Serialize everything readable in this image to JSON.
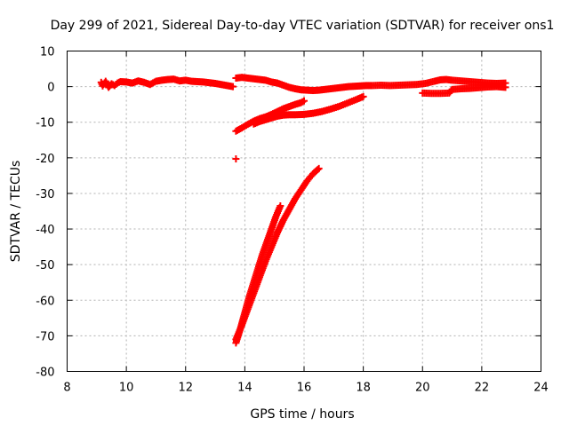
{
  "chart_data": {
    "type": "scatter",
    "title": "Day 299 of 2021, Sidereal Day-to-day VTEC variation (SDTVAR) for receiver ons1",
    "xlabel": "GPS time / hours",
    "ylabel": "SDTVAR / TECUs",
    "xlim": [
      8,
      24
    ],
    "ylim": [
      -80,
      10
    ],
    "xticks": [
      8,
      10,
      12,
      14,
      16,
      18,
      20,
      22,
      24
    ],
    "yticks": [
      10,
      0,
      -10,
      -20,
      -30,
      -40,
      -50,
      -60,
      -70,
      -80
    ],
    "grid": true,
    "marker": "plus",
    "color": "#ff0000",
    "series": [
      {
        "name": "main-track-left",
        "points": [
          [
            9.15,
            1.2
          ],
          [
            9.2,
            0.2
          ],
          [
            9.3,
            1.5
          ],
          [
            9.4,
            -0.2
          ],
          [
            9.5,
            0.8
          ],
          [
            9.6,
            0.3
          ],
          [
            9.7,
            1.0
          ],
          [
            9.8,
            1.4
          ],
          [
            10.0,
            1.3
          ],
          [
            10.2,
            1.0
          ],
          [
            10.4,
            1.6
          ],
          [
            10.6,
            1.2
          ],
          [
            10.8,
            0.6
          ],
          [
            11.0,
            1.5
          ],
          [
            11.2,
            1.8
          ],
          [
            11.4,
            2.0
          ],
          [
            11.6,
            2.1
          ],
          [
            11.8,
            1.6
          ],
          [
            12.0,
            1.8
          ],
          [
            12.2,
            1.5
          ],
          [
            12.4,
            1.4
          ],
          [
            12.6,
            1.3
          ],
          [
            12.8,
            1.1
          ],
          [
            13.0,
            0.9
          ],
          [
            13.2,
            0.6
          ],
          [
            13.4,
            0.3
          ],
          [
            13.6,
            0.0
          ]
        ]
      },
      {
        "name": "main-track-right",
        "points": [
          [
            13.7,
            2.4
          ],
          [
            13.9,
            2.6
          ],
          [
            14.1,
            2.4
          ],
          [
            14.3,
            2.2
          ],
          [
            14.5,
            2.0
          ],
          [
            14.7,
            1.8
          ],
          [
            14.9,
            1.3
          ],
          [
            15.1,
            1.0
          ],
          [
            15.3,
            0.4
          ],
          [
            15.5,
            -0.2
          ],
          [
            15.7,
            -0.6
          ],
          [
            15.9,
            -0.9
          ],
          [
            16.1,
            -1.0
          ],
          [
            16.3,
            -1.1
          ],
          [
            16.5,
            -1.0
          ],
          [
            16.7,
            -0.8
          ],
          [
            16.9,
            -0.6
          ],
          [
            17.1,
            -0.4
          ],
          [
            17.3,
            -0.2
          ],
          [
            17.5,
            0.0
          ],
          [
            17.7,
            0.1
          ],
          [
            17.9,
            0.2
          ],
          [
            18.1,
            0.3
          ],
          [
            18.3,
            0.3
          ],
          [
            18.6,
            0.4
          ],
          [
            18.9,
            0.3
          ],
          [
            19.2,
            0.4
          ],
          [
            19.5,
            0.5
          ],
          [
            19.8,
            0.6
          ],
          [
            20.1,
            0.9
          ],
          [
            20.4,
            1.5
          ],
          [
            20.6,
            1.9
          ],
          [
            20.8,
            2.0
          ],
          [
            21.0,
            1.8
          ],
          [
            21.3,
            1.6
          ],
          [
            21.6,
            1.4
          ],
          [
            21.9,
            1.2
          ],
          [
            22.2,
            1.0
          ],
          [
            22.5,
            0.9
          ],
          [
            22.8,
            1.0
          ]
        ]
      },
      {
        "name": "main-track-lower-branch",
        "points": [
          [
            20.0,
            -1.8
          ],
          [
            20.3,
            -1.9
          ],
          [
            20.6,
            -1.9
          ],
          [
            20.9,
            -1.8
          ],
          [
            21.0,
            -0.8
          ],
          [
            21.3,
            -0.6
          ],
          [
            21.6,
            -0.5
          ],
          [
            21.9,
            -0.3
          ],
          [
            22.2,
            -0.1
          ],
          [
            22.5,
            0.0
          ],
          [
            22.8,
            -0.2
          ]
        ]
      },
      {
        "name": "rising-arc-upper",
        "points": [
          [
            13.7,
            -12.5
          ],
          [
            13.9,
            -11.6
          ],
          [
            14.1,
            -10.6
          ],
          [
            14.3,
            -9.7
          ],
          [
            14.5,
            -9.0
          ],
          [
            14.7,
            -8.5
          ],
          [
            14.9,
            -7.8
          ],
          [
            15.1,
            -7.0
          ],
          [
            15.3,
            -6.2
          ],
          [
            15.5,
            -5.6
          ],
          [
            15.7,
            -5.0
          ],
          [
            15.9,
            -4.5
          ],
          [
            16.0,
            -4.0
          ]
        ]
      },
      {
        "name": "rising-arc-lower",
        "points": [
          [
            14.3,
            -10.5
          ],
          [
            14.5,
            -9.8
          ],
          [
            14.7,
            -9.3
          ],
          [
            14.9,
            -8.8
          ],
          [
            15.1,
            -8.3
          ],
          [
            15.3,
            -8.0
          ],
          [
            15.5,
            -7.9
          ],
          [
            15.7,
            -7.9
          ],
          [
            16.0,
            -7.8
          ],
          [
            16.3,
            -7.5
          ],
          [
            16.6,
            -7.0
          ],
          [
            16.9,
            -6.3
          ],
          [
            17.2,
            -5.5
          ],
          [
            17.5,
            -4.5
          ],
          [
            17.8,
            -3.5
          ],
          [
            18.0,
            -2.8
          ]
        ]
      },
      {
        "name": "isolated-point",
        "points": [
          [
            13.7,
            -20.3
          ]
        ]
      },
      {
        "name": "steep-track-a",
        "points": [
          [
            13.7,
            -72.0
          ],
          [
            13.85,
            -68.0
          ],
          [
            14.0,
            -63.5
          ],
          [
            14.15,
            -59.0
          ],
          [
            14.3,
            -55.0
          ],
          [
            14.45,
            -51.0
          ],
          [
            14.6,
            -47.0
          ],
          [
            14.75,
            -43.5
          ],
          [
            14.9,
            -40.0
          ],
          [
            15.05,
            -36.5
          ],
          [
            15.2,
            -33.5
          ]
        ]
      },
      {
        "name": "steep-track-b",
        "points": [
          [
            13.7,
            -71.0
          ],
          [
            13.9,
            -67.0
          ],
          [
            14.1,
            -62.5
          ],
          [
            14.3,
            -58.0
          ],
          [
            14.5,
            -53.5
          ],
          [
            14.7,
            -49.0
          ],
          [
            14.9,
            -45.0
          ],
          [
            15.1,
            -41.0
          ],
          [
            15.3,
            -37.5
          ],
          [
            15.5,
            -34.5
          ],
          [
            15.7,
            -31.5
          ],
          [
            15.9,
            -29.0
          ],
          [
            16.1,
            -26.5
          ],
          [
            16.3,
            -24.5
          ],
          [
            16.5,
            -23.0
          ]
        ]
      }
    ]
  }
}
